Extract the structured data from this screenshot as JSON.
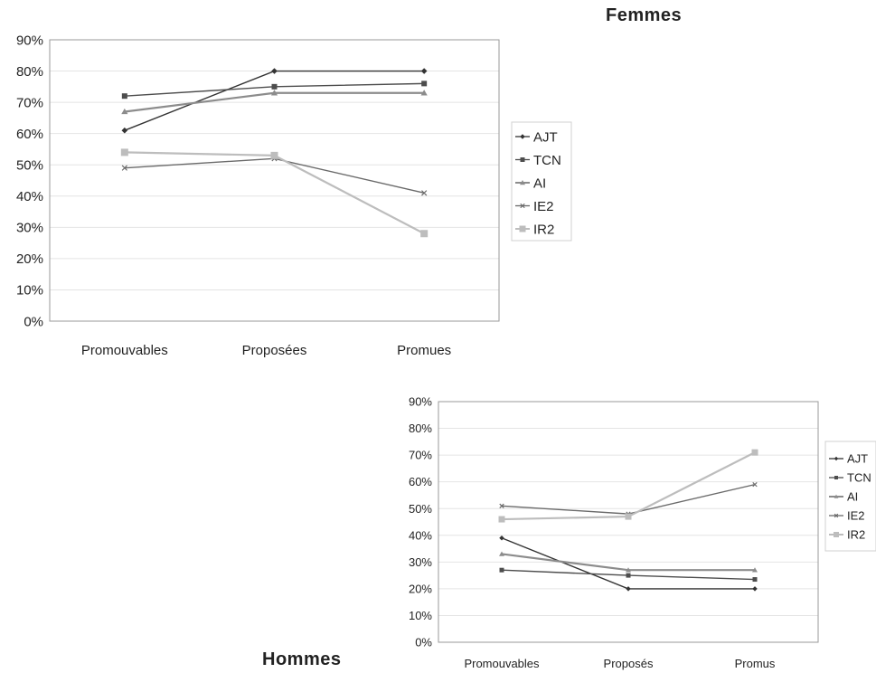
{
  "headings": {
    "femmes": "Femmes",
    "hommes": "Hommes"
  },
  "colors": {
    "AJT": "#333333",
    "TCN": "#4d4d4d",
    "AI": "#8c8c8c",
    "IE2": "#6a6a6a",
    "IR2": "#bdbdbd"
  },
  "chart_data": [
    {
      "type": "line",
      "title": "Femmes",
      "categories": [
        "Promouvables",
        "Proposées",
        "Promues"
      ],
      "y_ticks": [
        "0%",
        "10%",
        "20%",
        "30%",
        "40%",
        "50%",
        "60%",
        "70%",
        "80%",
        "90%"
      ],
      "ylim": [
        0,
        90
      ],
      "grid": true,
      "legend": "right",
      "series": [
        {
          "name": "AJT",
          "marker": "diamond",
          "values": [
            61,
            80,
            80
          ]
        },
        {
          "name": "TCN",
          "marker": "square",
          "values": [
            72,
            75,
            76
          ]
        },
        {
          "name": "AI",
          "marker": "triangle",
          "values": [
            67,
            73,
            73
          ]
        },
        {
          "name": "IE2",
          "marker": "x",
          "values": [
            49,
            52,
            41
          ]
        },
        {
          "name": "IR2",
          "marker": "square",
          "values": [
            54,
            53,
            28
          ]
        }
      ]
    },
    {
      "type": "line",
      "title": "Hommes",
      "categories": [
        "Promouvables",
        "Proposés",
        "Promus"
      ],
      "y_ticks": [
        "0%",
        "10%",
        "20%",
        "30%",
        "40%",
        "50%",
        "60%",
        "70%",
        "80%",
        "90%"
      ],
      "ylim": [
        0,
        90
      ],
      "grid": true,
      "legend": "right",
      "series": [
        {
          "name": "AJT",
          "marker": "diamond",
          "values": [
            39,
            20,
            20
          ]
        },
        {
          "name": "TCN",
          "marker": "square",
          "values": [
            27,
            25,
            23.5
          ]
        },
        {
          "name": "AI",
          "marker": "triangle",
          "values": [
            33,
            27,
            27
          ]
        },
        {
          "name": "IE2",
          "marker": "x",
          "values": [
            51,
            48,
            59
          ]
        },
        {
          "name": "IR2",
          "marker": "square",
          "values": [
            46,
            47,
            71
          ]
        }
      ]
    }
  ]
}
